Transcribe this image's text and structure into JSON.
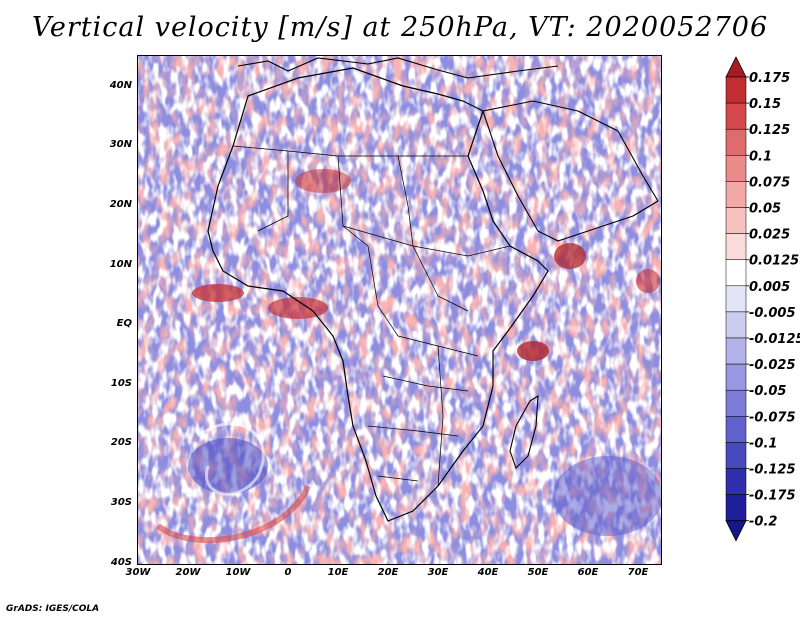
{
  "title": "Vertical velocity [m/s] at 250hPa, VT: 2020052706",
  "footer": "GrADS: IGES/COLA",
  "map": {
    "lat_labels": [
      "40N",
      "30N",
      "20N",
      "10N",
      "EQ",
      "10S",
      "20S",
      "30S",
      "40S"
    ],
    "lon_labels": [
      "30W",
      "20W",
      "10W",
      "0",
      "10E",
      "20E",
      "30E",
      "40E",
      "50E",
      "60E",
      "70E"
    ],
    "lat_range": [
      -40,
      44
    ],
    "lon_range": [
      -30,
      74
    ]
  },
  "colorbar": {
    "labels": [
      "0.175",
      "0.15",
      "0.125",
      "0.1",
      "0.075",
      "0.05",
      "0.025",
      "0.0125",
      "0.005",
      "-0.005",
      "-0.0125",
      "-0.025",
      "-0.05",
      "-0.075",
      "-0.1",
      "-0.125",
      "-0.175",
      "-0.2"
    ],
    "colors": [
      "#a51d22",
      "#c12d31",
      "#d4494b",
      "#e06b6c",
      "#ea8a89",
      "#f1a8a6",
      "#f6c3c1",
      "#fadbd9",
      "#ffffff",
      "#e4e4f6",
      "#ccccf0",
      "#b3b3ea",
      "#9898e2",
      "#7d7dd8",
      "#6262cd",
      "#4848bf",
      "#3030ae",
      "#1f1f9c",
      "#17178c"
    ]
  }
}
